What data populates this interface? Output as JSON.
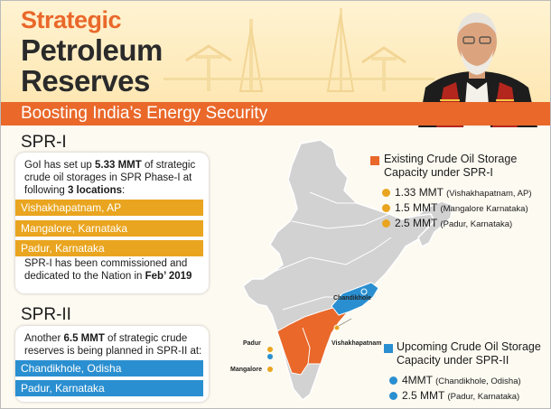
{
  "header": {
    "title_line1": "Strategic",
    "title_line2": "Petroleum",
    "title_line3": "Reserves",
    "subtitle": "Boosting India’s Energy Security"
  },
  "spr1": {
    "heading": "SPR-I",
    "intro_a": "GoI has set up ",
    "intro_b": "5.33 MMT",
    "intro_c": " of strategic crude oil storages in SPR Phase-I at following ",
    "intro_d": "3 locations",
    "intro_e": ":",
    "locations": [
      "Vishakhapatnam, AP",
      "Mangalore, Karnataka",
      "Padur, Karnataka"
    ],
    "commission_a": "SPR-I has been commissioned and dedicated to the Nation in ",
    "commission_b": "Feb’ 2019"
  },
  "spr2": {
    "heading": "SPR-II",
    "intro_a": "Another ",
    "intro_b": "6.5 MMT",
    "intro_c": " of strategic crude reserves is being planned in SPR-II at:",
    "locations": [
      "Chandikhole, Odisha",
      "Padur, Karnataka"
    ]
  },
  "legend_existing": {
    "title": "Existing Crude Oil Storage Capacity under SPR-I",
    "items": [
      {
        "value": "1.33 MMT",
        "place": "(Vishakhapatnam, AP)"
      },
      {
        "value": "1.5 MMT",
        "place": "(Mangalore Karnataka)"
      },
      {
        "value": "2.5 MMT",
        "place": "(Padur, Karnataka)"
      }
    ]
  },
  "legend_upcoming": {
    "title": "Upcoming Crude Oil Storage Capacity under SPR-II",
    "items": [
      {
        "value": "4MMT",
        "place": "(Chandikhole, Odisha)"
      },
      {
        "value": "2.5 MMT",
        "place": "(Padur, Karnataka)"
      }
    ]
  },
  "map_labels": {
    "chandikhole": "Chandikhole",
    "vishakhapatnam": "Vishakhapatnam",
    "padur": "Padur",
    "mangalore": "Mangalore"
  },
  "colors": {
    "orange": "#e9682a",
    "gold": "#e9a51f",
    "blue": "#2a8fd0",
    "map_grey": "#d2d2d2"
  }
}
